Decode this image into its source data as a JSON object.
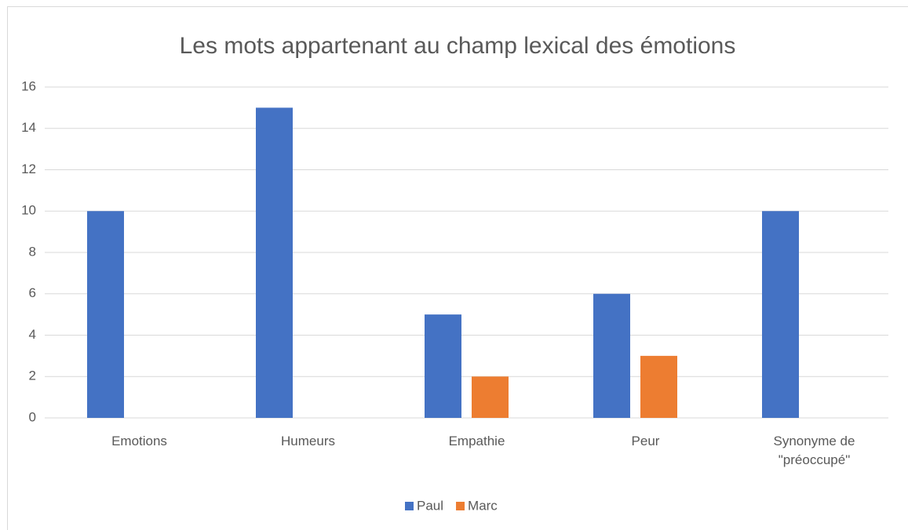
{
  "chart_data": {
    "type": "bar",
    "title": "Les mots appartenant au champ lexical des émotions",
    "categories": [
      "Emotions",
      "Humeurs",
      "Empathie",
      "Peur",
      "Synonyme de \"préoccupé\""
    ],
    "series": [
      {
        "name": "Paul",
        "color": "#4472c4",
        "values": [
          10,
          15,
          5,
          6,
          10
        ]
      },
      {
        "name": "Marc",
        "color": "#ed7d31",
        "values": [
          0,
          0,
          2,
          3,
          0
        ]
      }
    ],
    "ylim": [
      0,
      16
    ],
    "yticks": [
      0,
      2,
      4,
      6,
      8,
      10,
      12,
      14,
      16
    ],
    "grid": true,
    "legend": "bottom"
  }
}
